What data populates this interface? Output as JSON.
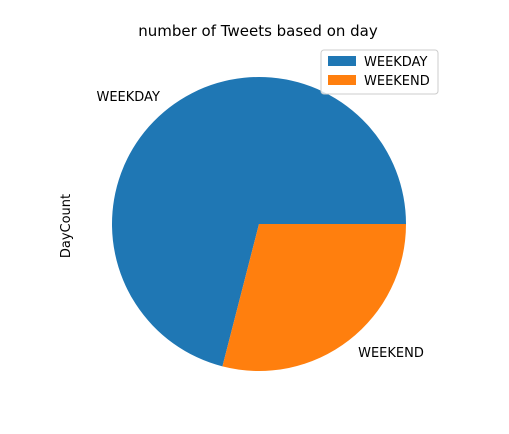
{
  "chart_data": {
    "type": "pie",
    "title": "number of Tweets based on day",
    "ylabel": "DayCount",
    "categories": [
      "WEEKDAY",
      "WEEKEND"
    ],
    "values": [
      71,
      29
    ],
    "colors": [
      "#1f77b4",
      "#ff7f0e"
    ],
    "start_angle_deg": 0,
    "direction": "counterclockwise",
    "legend": {
      "placement": "upper-right",
      "entries": [
        "WEEKDAY",
        "WEEKEND"
      ]
    }
  }
}
